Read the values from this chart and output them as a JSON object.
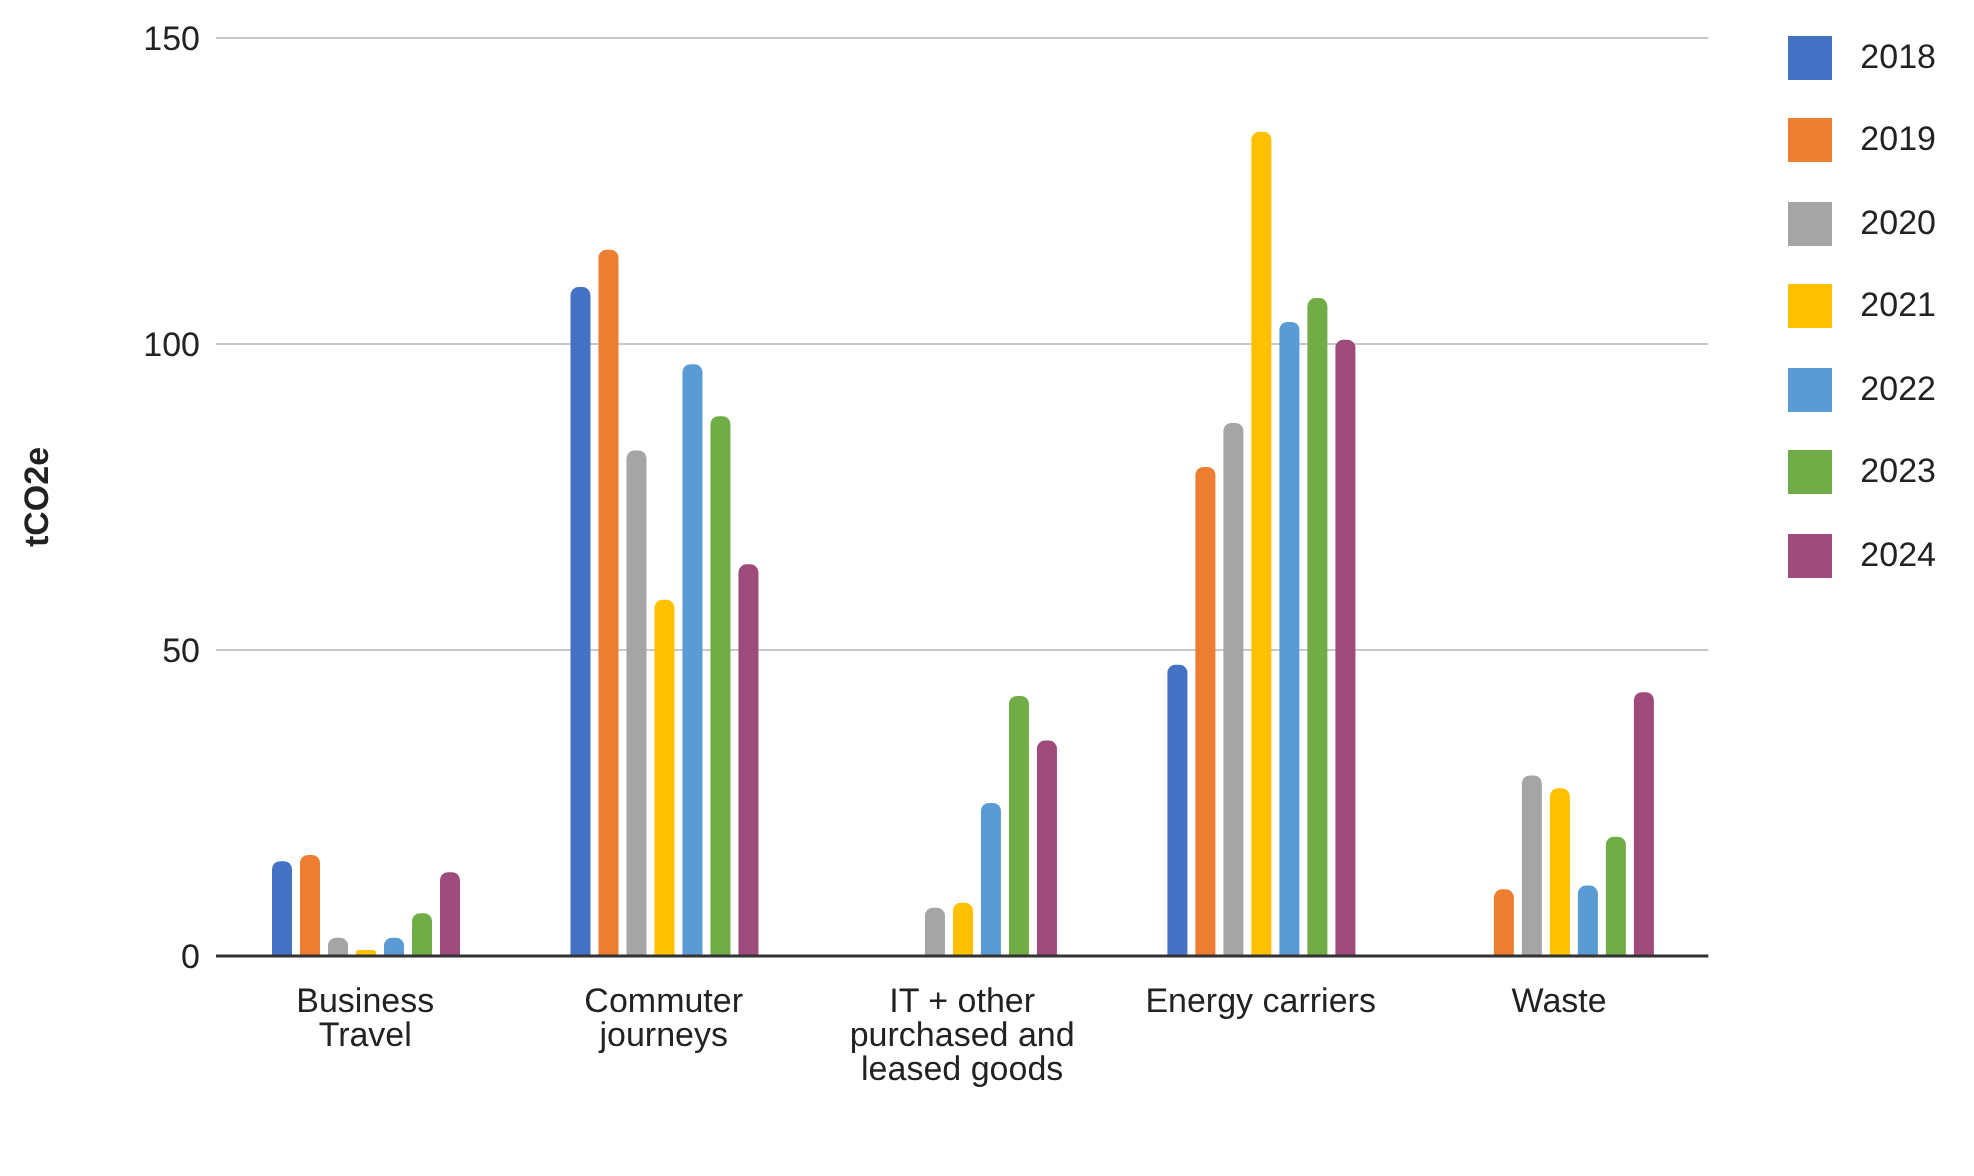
{
  "chart_data": {
    "type": "bar",
    "ylabel": "tCO2e",
    "categories": [
      "Business Travel",
      "Commuter journeys",
      "IT + other purchased and leased goods",
      "Energy carriers",
      "Waste"
    ],
    "series": [
      {
        "name": "2018",
        "color": "#4472c4",
        "values": [
          15.5,
          109.3,
          null,
          47.6,
          null
        ]
      },
      {
        "name": "2019",
        "color": "#ed7d31",
        "values": [
          16.5,
          115.4,
          null,
          79.9,
          10.9
        ]
      },
      {
        "name": "2020",
        "color": "#a5a5a5",
        "values": [
          3,
          82.6,
          7.9,
          87.1,
          29.5
        ]
      },
      {
        "name": "2021",
        "color": "#ffc000",
        "values": [
          1,
          58.2,
          8.7,
          134.7,
          27.4
        ]
      },
      {
        "name": "2022",
        "color": "#5b9bd5",
        "values": [
          3,
          96.7,
          25,
          103.6,
          11.5
        ]
      },
      {
        "name": "2023",
        "color": "#70ad47",
        "values": [
          7,
          88.2,
          42.5,
          107.5,
          19.5
        ]
      },
      {
        "name": "2024",
        "color": "#9e4a7b",
        "values": [
          13.7,
          64,
          35.2,
          100.7,
          43.1
        ]
      }
    ],
    "ylim": [
      0,
      150
    ],
    "yticks": [
      0,
      50,
      100,
      150
    ],
    "grid": "y",
    "legend": "right"
  }
}
